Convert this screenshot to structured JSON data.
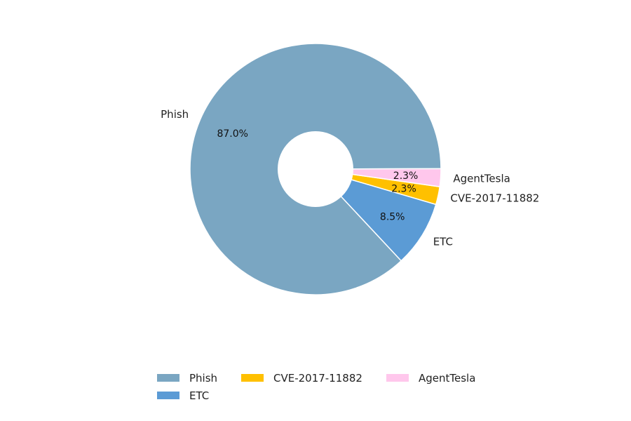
{
  "chart_data": {
    "type": "pie",
    "donut": true,
    "slices": [
      {
        "label": "Phish",
        "value": 87.0,
        "pct_label": "87.0%",
        "color": "#7AA6C2"
      },
      {
        "label": "ETC",
        "value": 8.5,
        "pct_label": "8.5%",
        "color": "#5B9BD5"
      },
      {
        "label": "CVE-2017-11882",
        "value": 2.3,
        "pct_label": "2.3%",
        "color": "#FFC000"
      },
      {
        "label": "AgentTesla",
        "value": 2.3,
        "pct_label": "2.3%",
        "color": "#FFC7EC"
      }
    ],
    "legend": {
      "placement": "bottom-center",
      "entries": [
        "Phish",
        "ETC",
        "CVE-2017-11882",
        "AgentTesla"
      ]
    },
    "title": ""
  }
}
